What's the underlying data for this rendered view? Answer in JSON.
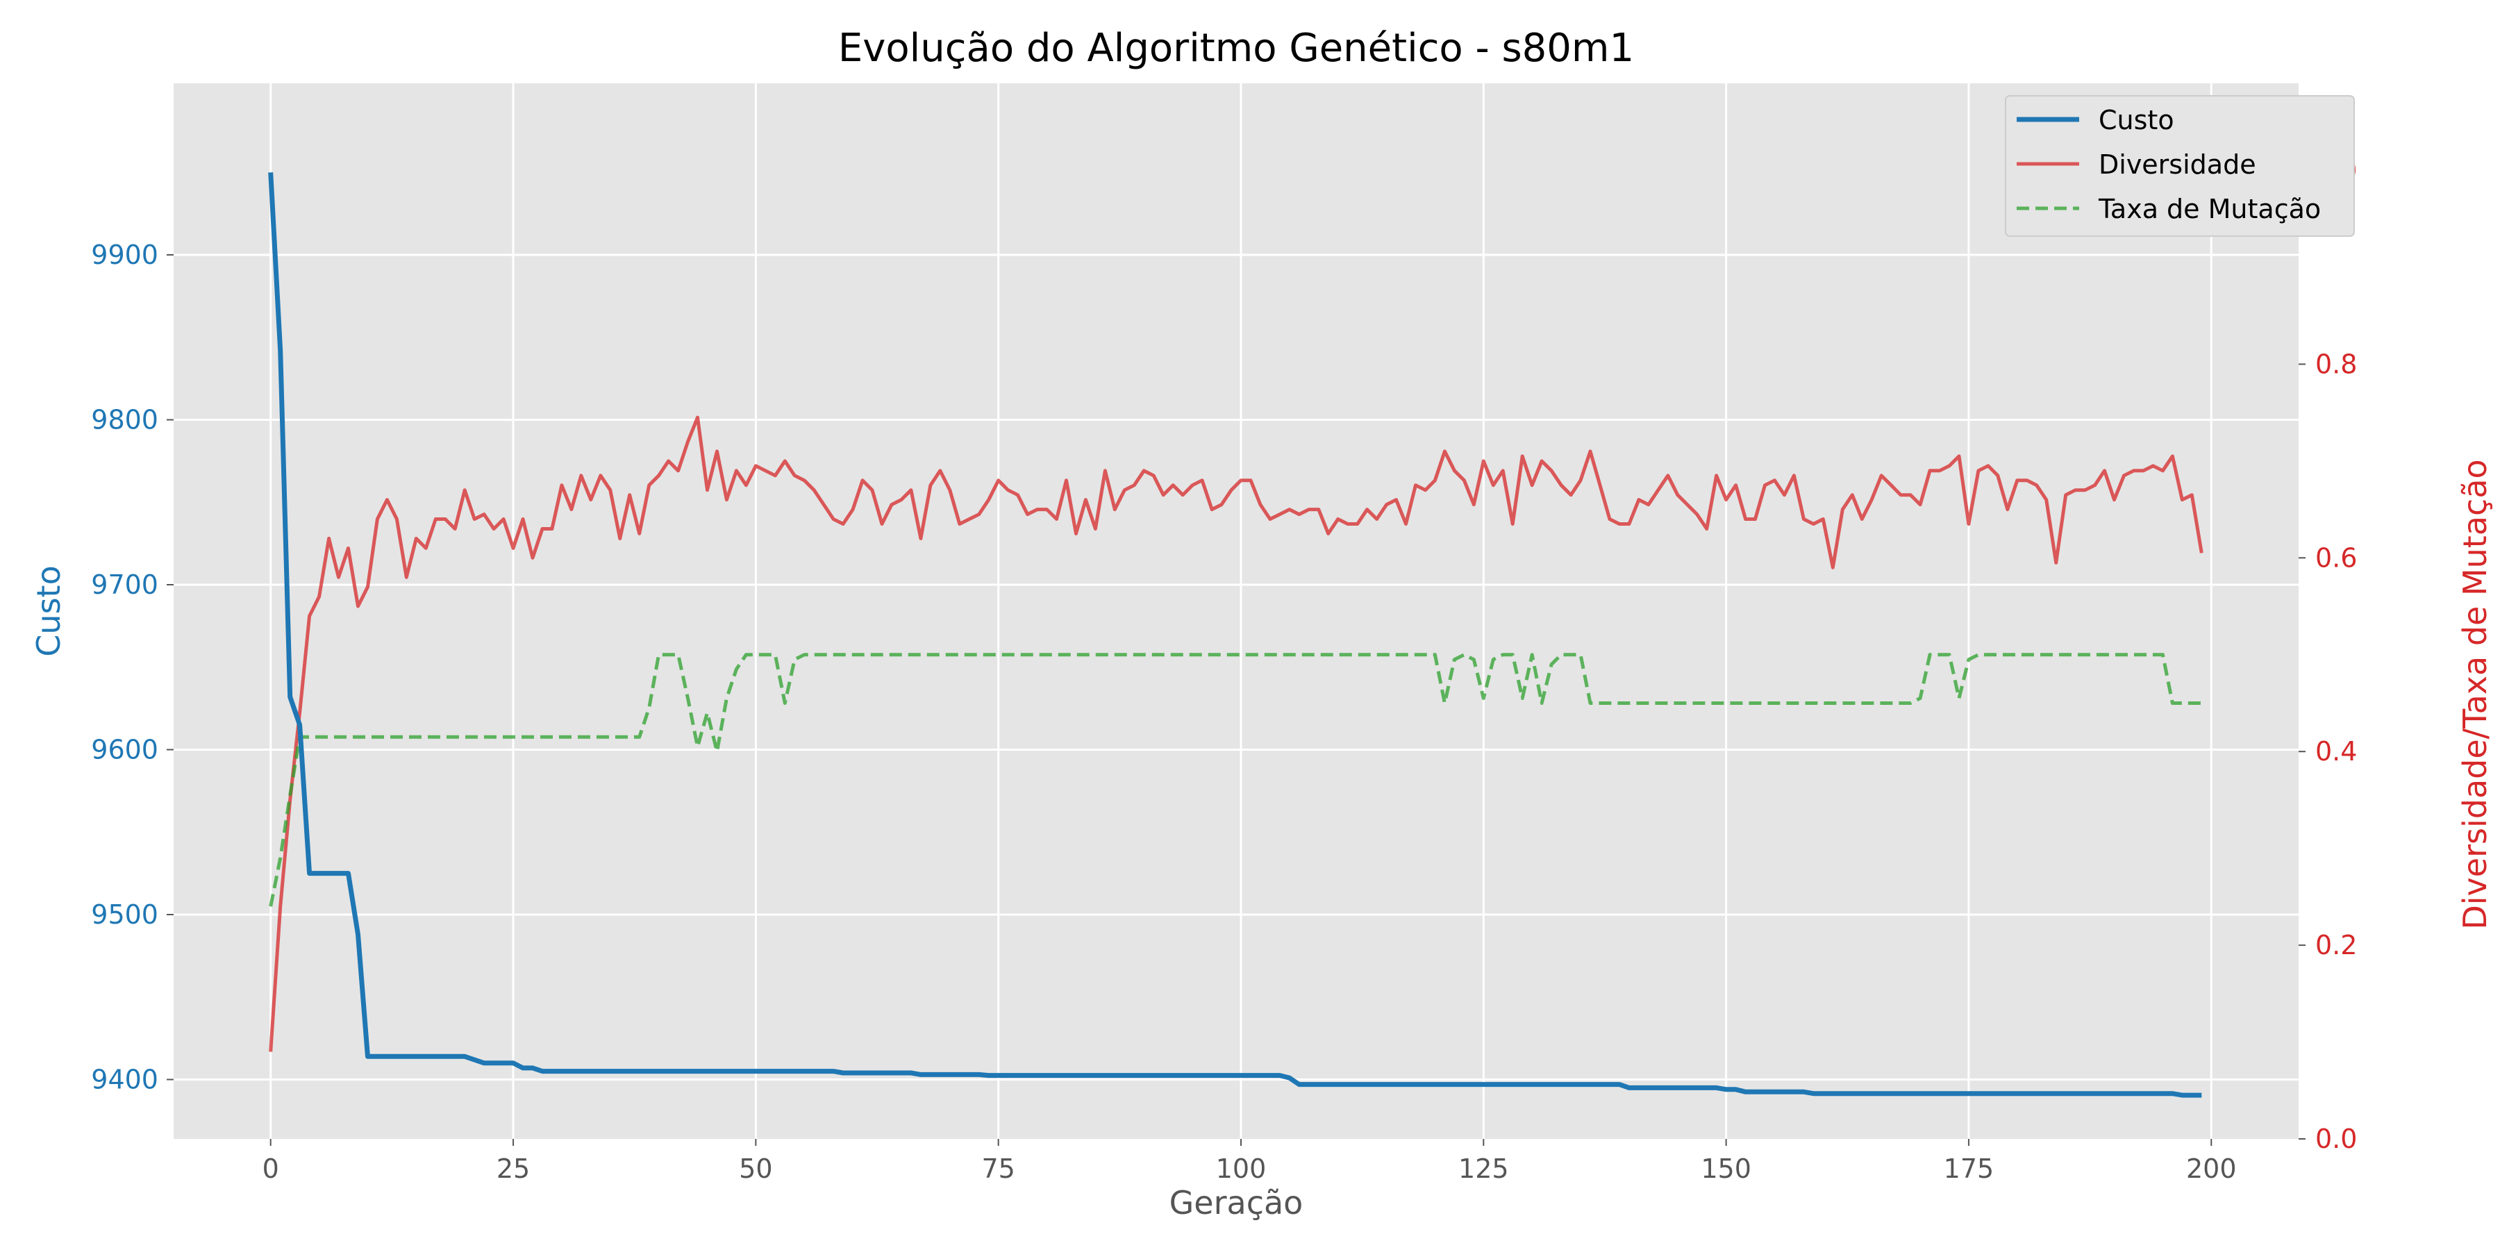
{
  "chart_data": {
    "type": "line",
    "title": "Evolução do Algoritmo Genético - s80m1",
    "xlabel": "Geração",
    "ylabel_left": "Custo",
    "ylabel_right": "Diversidade/Taxa de Mutação",
    "xlim": [
      -10,
      209
    ],
    "ylim_left": [
      9364,
      10004
    ],
    "ylim_right": [
      0.0,
      1.09
    ],
    "xticks": [
      0,
      25,
      50,
      75,
      100,
      125,
      150,
      175,
      200
    ],
    "xtick_labels": [
      "0",
      "25",
      "50",
      "75",
      "100",
      "125",
      "150",
      "175",
      "200"
    ],
    "yticks_left": [
      9400,
      9500,
      9600,
      9700,
      9800,
      9900
    ],
    "ytick_labels_left": [
      "9400",
      "9500",
      "9600",
      "9700",
      "9800",
      "9900"
    ],
    "yticks_right": [
      0.0,
      0.2,
      0.4,
      0.6,
      0.8,
      1.0
    ],
    "ytick_labels_right": [
      "0.0",
      "0.2",
      "0.4",
      "0.6",
      "0.8",
      "1.0"
    ],
    "grid": true,
    "legend_position": "top-right",
    "colors": {
      "custo": "#1f77b4",
      "diversidade": "#d62728",
      "taxa": "#2ca02c",
      "plot_bg": "#e5e5e5",
      "grid": "#ffffff",
      "tick": "#555555"
    },
    "series": [
      {
        "name": "Custo",
        "axis": "left",
        "style": "solid",
        "points": [
          [
            0,
            9950
          ],
          [
            1,
            9842
          ],
          [
            2,
            9632
          ],
          [
            3,
            9615
          ],
          [
            4,
            9525
          ],
          [
            8,
            9525
          ],
          [
            9,
            9488
          ],
          [
            10,
            9414
          ],
          [
            20,
            9414
          ],
          [
            22,
            9410
          ],
          [
            25,
            9410
          ],
          [
            26,
            9407
          ],
          [
            27,
            9407
          ],
          [
            28,
            9405
          ],
          [
            58,
            9405
          ],
          [
            59,
            9404
          ],
          [
            66,
            9404
          ],
          [
            67,
            9403
          ],
          [
            73,
            9403
          ],
          [
            74,
            9402.5
          ],
          [
            104,
            9402.5
          ],
          [
            105,
            9401
          ],
          [
            106,
            9397
          ],
          [
            139,
            9397
          ],
          [
            140,
            9395
          ],
          [
            149,
            9395
          ],
          [
            150,
            9394
          ],
          [
            151,
            9394
          ],
          [
            152,
            9392.5
          ],
          [
            158,
            9392.5
          ],
          [
            159,
            9391.5
          ],
          [
            196,
            9391.5
          ],
          [
            197,
            9390.5
          ],
          [
            199,
            9390.5
          ]
        ]
      },
      {
        "name": "Diversidade",
        "axis": "right",
        "style": "solid",
        "points": [
          [
            0,
            0.09
          ],
          [
            1,
            0.24
          ],
          [
            2,
            0.35
          ],
          [
            3,
            0.44
          ],
          [
            4,
            0.54
          ],
          [
            5,
            0.56
          ],
          [
            6,
            0.62
          ],
          [
            7,
            0.58
          ],
          [
            8,
            0.61
          ],
          [
            9,
            0.55
          ],
          [
            10,
            0.57
          ],
          [
            11,
            0.64
          ],
          [
            12,
            0.66
          ],
          [
            13,
            0.64
          ],
          [
            14,
            0.58
          ],
          [
            15,
            0.62
          ],
          [
            16,
            0.61
          ],
          [
            17,
            0.64
          ],
          [
            18,
            0.64
          ],
          [
            19,
            0.63
          ],
          [
            20,
            0.67
          ],
          [
            21,
            0.64
          ],
          [
            22,
            0.645
          ],
          [
            23,
            0.63
          ],
          [
            24,
            0.64
          ],
          [
            25,
            0.61
          ],
          [
            26,
            0.64
          ],
          [
            27,
            0.6
          ],
          [
            28,
            0.63
          ],
          [
            29,
            0.63
          ],
          [
            30,
            0.675
          ],
          [
            31,
            0.65
          ],
          [
            32,
            0.685
          ],
          [
            33,
            0.66
          ],
          [
            34,
            0.685
          ],
          [
            35,
            0.67
          ],
          [
            36,
            0.62
          ],
          [
            37,
            0.665
          ],
          [
            38,
            0.625
          ],
          [
            39,
            0.675
          ],
          [
            40,
            0.685
          ],
          [
            41,
            0.7
          ],
          [
            42,
            0.69
          ],
          [
            43,
            0.72
          ],
          [
            44,
            0.745
          ],
          [
            45,
            0.67
          ],
          [
            46,
            0.71
          ],
          [
            47,
            0.66
          ],
          [
            48,
            0.69
          ],
          [
            49,
            0.675
          ],
          [
            50,
            0.695
          ],
          [
            51,
            0.69
          ],
          [
            52,
            0.685
          ],
          [
            53,
            0.7
          ],
          [
            54,
            0.685
          ],
          [
            55,
            0.68
          ],
          [
            56,
            0.67
          ],
          [
            57,
            0.655
          ],
          [
            58,
            0.64
          ],
          [
            59,
            0.635
          ],
          [
            60,
            0.65
          ],
          [
            61,
            0.68
          ],
          [
            62,
            0.67
          ],
          [
            63,
            0.635
          ],
          [
            64,
            0.655
          ],
          [
            65,
            0.66
          ],
          [
            66,
            0.67
          ],
          [
            67,
            0.62
          ],
          [
            68,
            0.675
          ],
          [
            69,
            0.69
          ],
          [
            70,
            0.67
          ],
          [
            71,
            0.635
          ],
          [
            72,
            0.64
          ],
          [
            73,
            0.645
          ],
          [
            74,
            0.66
          ],
          [
            75,
            0.68
          ],
          [
            76,
            0.67
          ],
          [
            77,
            0.665
          ],
          [
            78,
            0.645
          ],
          [
            79,
            0.65
          ],
          [
            80,
            0.65
          ],
          [
            81,
            0.64
          ],
          [
            82,
            0.68
          ],
          [
            83,
            0.625
          ],
          [
            84,
            0.66
          ],
          [
            85,
            0.63
          ],
          [
            86,
            0.69
          ],
          [
            87,
            0.65
          ],
          [
            88,
            0.67
          ],
          [
            89,
            0.675
          ],
          [
            90,
            0.69
          ],
          [
            91,
            0.685
          ],
          [
            92,
            0.665
          ],
          [
            93,
            0.675
          ],
          [
            94,
            0.665
          ],
          [
            95,
            0.675
          ],
          [
            96,
            0.68
          ],
          [
            97,
            0.65
          ],
          [
            98,
            0.655
          ],
          [
            99,
            0.67
          ],
          [
            100,
            0.68
          ],
          [
            101,
            0.68
          ],
          [
            102,
            0.655
          ],
          [
            103,
            0.64
          ],
          [
            104,
            0.645
          ],
          [
            105,
            0.65
          ],
          [
            106,
            0.645
          ],
          [
            107,
            0.65
          ],
          [
            108,
            0.65
          ],
          [
            109,
            0.625
          ],
          [
            110,
            0.64
          ],
          [
            111,
            0.635
          ],
          [
            112,
            0.635
          ],
          [
            113,
            0.65
          ],
          [
            114,
            0.64
          ],
          [
            115,
            0.655
          ],
          [
            116,
            0.66
          ],
          [
            117,
            0.635
          ],
          [
            118,
            0.675
          ],
          [
            119,
            0.67
          ],
          [
            120,
            0.68
          ],
          [
            121,
            0.71
          ],
          [
            122,
            0.69
          ],
          [
            123,
            0.68
          ],
          [
            124,
            0.655
          ],
          [
            125,
            0.7
          ],
          [
            126,
            0.675
          ],
          [
            127,
            0.69
          ],
          [
            128,
            0.635
          ],
          [
            129,
            0.705
          ],
          [
            130,
            0.675
          ],
          [
            131,
            0.7
          ],
          [
            132,
            0.69
          ],
          [
            133,
            0.675
          ],
          [
            134,
            0.665
          ],
          [
            135,
            0.68
          ],
          [
            136,
            0.71
          ],
          [
            137,
            0.675
          ],
          [
            138,
            0.64
          ],
          [
            139,
            0.635
          ],
          [
            140,
            0.635
          ],
          [
            141,
            0.66
          ],
          [
            142,
            0.655
          ],
          [
            143,
            0.67
          ],
          [
            144,
            0.685
          ],
          [
            145,
            0.665
          ],
          [
            146,
            0.655
          ],
          [
            147,
            0.645
          ],
          [
            148,
            0.63
          ],
          [
            149,
            0.685
          ],
          [
            150,
            0.66
          ],
          [
            151,
            0.675
          ],
          [
            152,
            0.64
          ],
          [
            153,
            0.64
          ],
          [
            154,
            0.675
          ],
          [
            155,
            0.68
          ],
          [
            156,
            0.665
          ],
          [
            157,
            0.685
          ],
          [
            158,
            0.64
          ],
          [
            159,
            0.635
          ],
          [
            160,
            0.64
          ],
          [
            161,
            0.59
          ],
          [
            162,
            0.65
          ],
          [
            163,
            0.665
          ],
          [
            164,
            0.64
          ],
          [
            165,
            0.66
          ],
          [
            166,
            0.685
          ],
          [
            167,
            0.675
          ],
          [
            168,
            0.665
          ],
          [
            169,
            0.665
          ],
          [
            170,
            0.655
          ],
          [
            171,
            0.69
          ],
          [
            172,
            0.69
          ],
          [
            173,
            0.695
          ],
          [
            174,
            0.705
          ],
          [
            175,
            0.635
          ],
          [
            176,
            0.69
          ],
          [
            177,
            0.695
          ],
          [
            178,
            0.685
          ],
          [
            179,
            0.65
          ],
          [
            180,
            0.68
          ],
          [
            181,
            0.68
          ],
          [
            182,
            0.675
          ],
          [
            183,
            0.66
          ],
          [
            184,
            0.595
          ],
          [
            185,
            0.665
          ],
          [
            186,
            0.67
          ],
          [
            187,
            0.67
          ],
          [
            188,
            0.675
          ],
          [
            189,
            0.69
          ],
          [
            190,
            0.66
          ],
          [
            191,
            0.685
          ],
          [
            192,
            0.69
          ],
          [
            193,
            0.69
          ],
          [
            194,
            0.695
          ],
          [
            195,
            0.69
          ],
          [
            196,
            0.705
          ],
          [
            197,
            0.66
          ],
          [
            198,
            0.665
          ],
          [
            199,
            0.605
          ]
        ]
      },
      {
        "name": "Taxa de Mutação",
        "axis": "right",
        "style": "dashed",
        "points": [
          [
            0,
            0.24
          ],
          [
            1,
            0.29
          ],
          [
            2,
            0.355
          ],
          [
            3,
            0.415
          ],
          [
            38,
            0.415
          ],
          [
            39,
            0.445
          ],
          [
            40,
            0.5
          ],
          [
            42,
            0.5
          ],
          [
            43,
            0.455
          ],
          [
            44,
            0.405
          ],
          [
            45,
            0.44
          ],
          [
            46,
            0.4
          ],
          [
            47,
            0.455
          ],
          [
            48,
            0.485
          ],
          [
            49,
            0.5
          ],
          [
            52,
            0.5
          ],
          [
            53,
            0.45
          ],
          [
            54,
            0.495
          ],
          [
            55,
            0.5
          ],
          [
            120,
            0.5
          ],
          [
            121,
            0.45
          ],
          [
            122,
            0.495
          ],
          [
            123,
            0.5
          ],
          [
            124,
            0.495
          ],
          [
            125,
            0.455
          ],
          [
            126,
            0.495
          ],
          [
            127,
            0.5
          ],
          [
            128,
            0.5
          ],
          [
            129,
            0.455
          ],
          [
            130,
            0.5
          ],
          [
            131,
            0.45
          ],
          [
            132,
            0.49
          ],
          [
            133,
            0.5
          ],
          [
            135,
            0.5
          ],
          [
            136,
            0.45
          ],
          [
            169,
            0.45
          ],
          [
            170,
            0.455
          ],
          [
            171,
            0.5
          ],
          [
            173,
            0.5
          ],
          [
            174,
            0.455
          ],
          [
            175,
            0.495
          ],
          [
            176,
            0.5
          ],
          [
            195,
            0.5
          ],
          [
            196,
            0.45
          ],
          [
            199,
            0.45
          ]
        ]
      }
    ]
  }
}
